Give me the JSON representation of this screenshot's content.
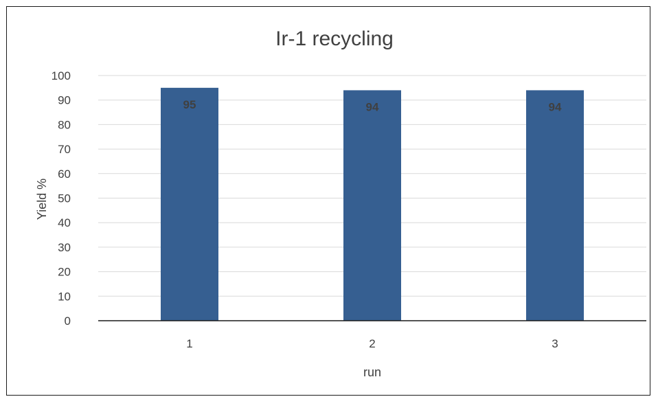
{
  "chart_data": {
    "type": "bar",
    "title": "Ir-1 recycling",
    "xlabel": "run",
    "ylabel": "Yield %",
    "categories": [
      "1",
      "2",
      "3"
    ],
    "values": [
      95,
      94,
      94
    ],
    "data_labels": [
      "95",
      "94",
      "94"
    ],
    "ylim": [
      0,
      100
    ],
    "yticks": [
      0,
      10,
      20,
      30,
      40,
      50,
      60,
      70,
      80,
      90,
      100
    ],
    "grid": true,
    "legend": "none",
    "bar_color": "#365f91",
    "gridline_color": "#d9d9d9",
    "text_color": "#404040"
  }
}
